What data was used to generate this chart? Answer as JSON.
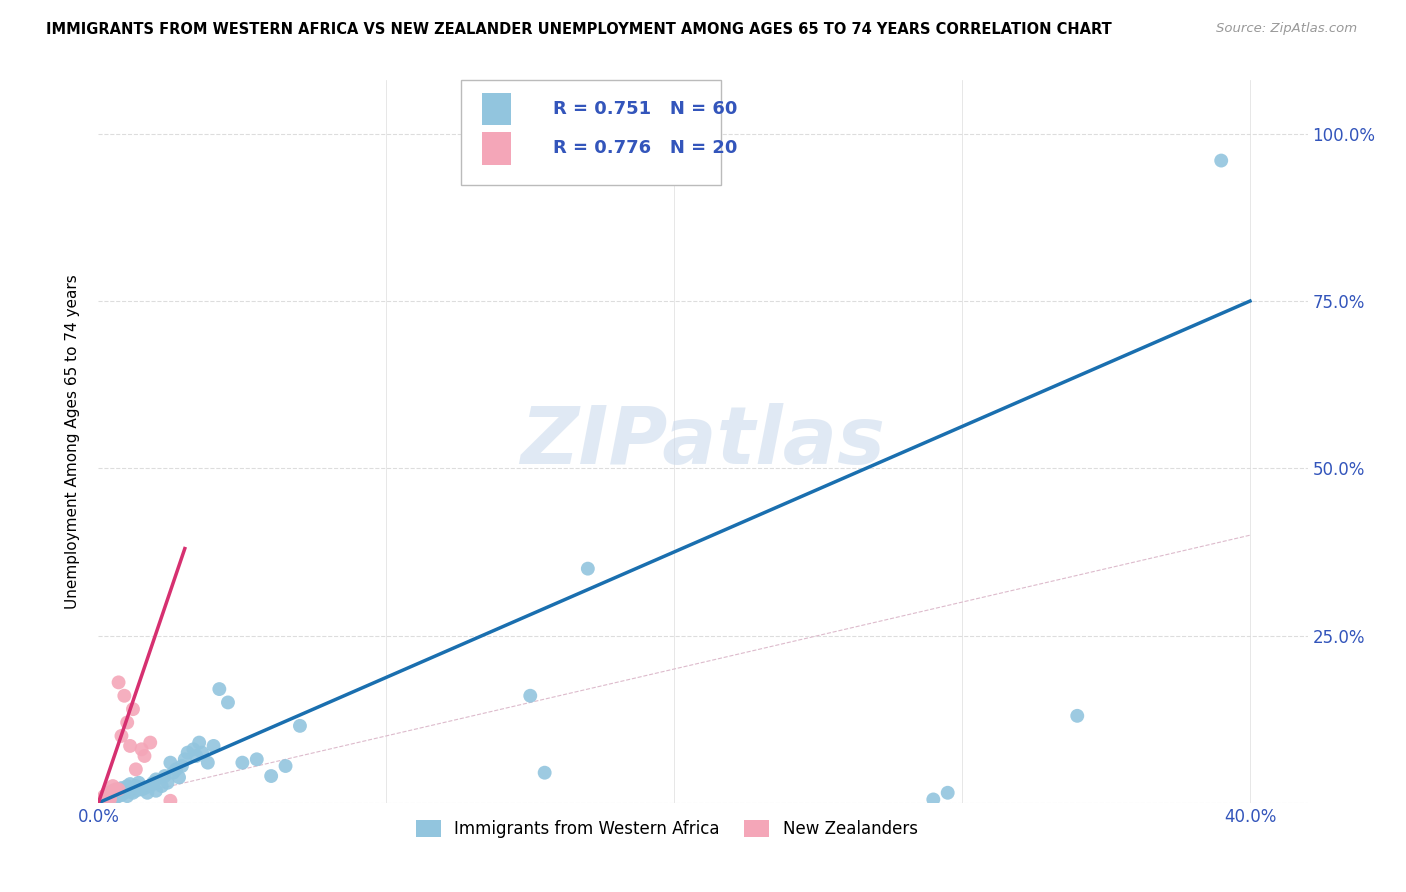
{
  "title": "IMMIGRANTS FROM WESTERN AFRICA VS NEW ZEALANDER UNEMPLOYMENT AMONG AGES 65 TO 74 YEARS CORRELATION CHART",
  "source": "Source: ZipAtlas.com",
  "ylabel": "Unemployment Among Ages 65 to 74 years",
  "xlim": [
    0.0,
    0.42
  ],
  "ylim": [
    0.0,
    1.08
  ],
  "x_ticks": [
    0.0,
    0.1,
    0.2,
    0.3,
    0.4
  ],
  "x_tick_labels": [
    "0.0%",
    "",
    "",
    "",
    "40.0%"
  ],
  "y_ticks": [
    0.0,
    0.25,
    0.5,
    0.75,
    1.0
  ],
  "y_tick_labels_right": [
    "",
    "25.0%",
    "50.0%",
    "75.0%",
    "100.0%"
  ],
  "blue_marker_color": "#92c5de",
  "blue_line_color": "#1a6faf",
  "pink_marker_color": "#f4a6b8",
  "pink_line_color": "#d63070",
  "diagonal_color": "#cccccc",
  "grid_color": "#dddddd",
  "legend_R_blue": "0.751",
  "legend_N_blue": "60",
  "legend_R_pink": "0.776",
  "legend_N_pink": "20",
  "legend_text_color": "#3355bb",
  "watermark_text": "ZIPatlas",
  "watermark_color": "#c8d8ec",
  "blue_scatter_x": [
    0.002,
    0.003,
    0.003,
    0.004,
    0.005,
    0.005,
    0.006,
    0.006,
    0.007,
    0.007,
    0.008,
    0.008,
    0.009,
    0.009,
    0.01,
    0.01,
    0.011,
    0.011,
    0.012,
    0.012,
    0.013,
    0.013,
    0.014,
    0.015,
    0.016,
    0.017,
    0.018,
    0.019,
    0.02,
    0.02,
    0.022,
    0.023,
    0.024,
    0.025,
    0.026,
    0.027,
    0.028,
    0.029,
    0.03,
    0.031,
    0.033,
    0.034,
    0.035,
    0.036,
    0.038,
    0.04,
    0.042,
    0.045,
    0.05,
    0.055,
    0.06,
    0.065,
    0.07,
    0.15,
    0.155,
    0.17,
    0.29,
    0.295,
    0.34,
    0.39
  ],
  "blue_scatter_y": [
    0.005,
    0.008,
    0.012,
    0.006,
    0.01,
    0.018,
    0.008,
    0.015,
    0.01,
    0.02,
    0.012,
    0.022,
    0.015,
    0.018,
    0.01,
    0.025,
    0.018,
    0.028,
    0.015,
    0.022,
    0.018,
    0.025,
    0.03,
    0.02,
    0.022,
    0.015,
    0.025,
    0.03,
    0.018,
    0.035,
    0.025,
    0.04,
    0.03,
    0.06,
    0.045,
    0.05,
    0.038,
    0.055,
    0.065,
    0.075,
    0.08,
    0.07,
    0.09,
    0.075,
    0.06,
    0.085,
    0.17,
    0.15,
    0.06,
    0.065,
    0.04,
    0.055,
    0.115,
    0.16,
    0.045,
    0.35,
    0.005,
    0.015,
    0.13,
    0.96
  ],
  "pink_scatter_x": [
    0.001,
    0.002,
    0.003,
    0.003,
    0.004,
    0.004,
    0.005,
    0.006,
    0.007,
    0.007,
    0.008,
    0.009,
    0.01,
    0.011,
    0.012,
    0.013,
    0.015,
    0.016,
    0.018,
    0.025
  ],
  "pink_scatter_y": [
    0.005,
    0.01,
    0.008,
    0.015,
    0.01,
    0.005,
    0.025,
    0.02,
    0.18,
    0.02,
    0.1,
    0.16,
    0.12,
    0.085,
    0.14,
    0.05,
    0.08,
    0.07,
    0.09,
    0.003
  ],
  "blue_trendline": [
    0.0,
    0.0,
    0.4,
    0.75
  ],
  "pink_trendline": [
    0.0,
    0.0,
    0.03,
    0.38
  ]
}
